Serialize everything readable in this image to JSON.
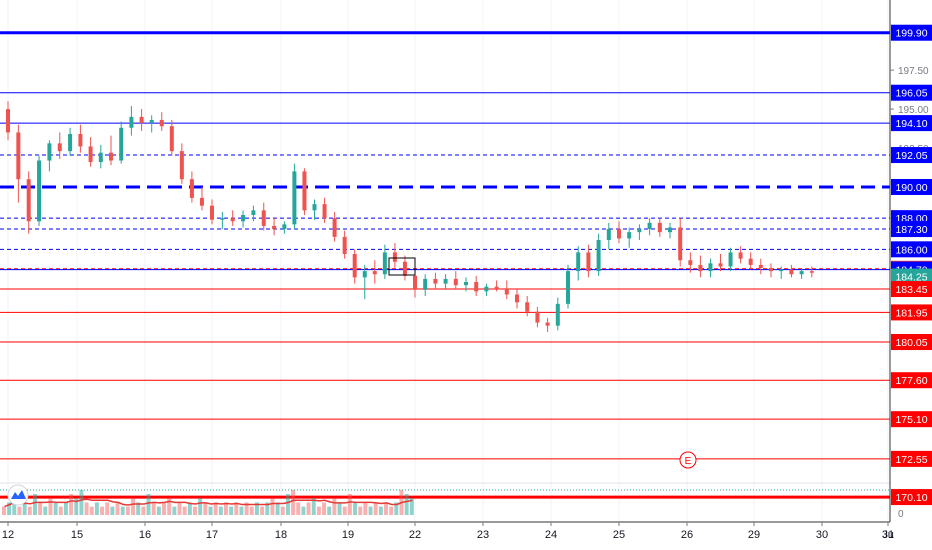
{
  "chart_data": {
    "type": "candlestick",
    "price_axis": {
      "range": [
        168.5,
        202.0
      ],
      "ticks": [
        "197.50",
        "195.00",
        "192.50"
      ]
    },
    "x_axis": {
      "tick_labels": [
        "12",
        "15",
        "16",
        "17",
        "18",
        "19",
        "22",
        "23",
        "24",
        "25",
        "26",
        "29",
        "30",
        "31",
        "Ju"
      ]
    },
    "level_labels": [
      {
        "value": 199.9,
        "label": "199.90",
        "color": "#0000ff"
      },
      {
        "value": 196.05,
        "label": "196.05",
        "color": "#0000ff"
      },
      {
        "value": 194.1,
        "label": "194.10",
        "color": "#0000ff"
      },
      {
        "value": 192.05,
        "label": "192.05",
        "color": "#0000ff"
      },
      {
        "value": 190.0,
        "label": "190.00",
        "color": "#0000ff"
      },
      {
        "value": 188.0,
        "label": "188.00",
        "color": "#0000ff"
      },
      {
        "value": 187.3,
        "label": "187.30",
        "color": "#0000ff"
      },
      {
        "value": 186.0,
        "label": "186.00",
        "color": "#0000ff"
      },
      {
        "value": 184.75,
        "label": "184.75",
        "color": "#f22d2d"
      },
      {
        "value": 184.7,
        "label": "184.70",
        "color": "#0000ff"
      },
      {
        "value": 184.25,
        "label": "184.25",
        "color": "#26a69a"
      },
      {
        "value": 183.45,
        "label": "183.45",
        "color": "#ff0000"
      },
      {
        "value": 181.95,
        "label": "181.95",
        "color": "#ff0000"
      },
      {
        "value": 180.05,
        "label": "180.05",
        "color": "#ff0000"
      },
      {
        "value": 177.6,
        "label": "177.60",
        "color": "#ff0000"
      },
      {
        "value": 175.1,
        "label": "175.10",
        "color": "#ff0000"
      },
      {
        "value": 172.55,
        "label": "172.55",
        "color": "#ff0000"
      },
      {
        "value": 170.1,
        "label": "170.10",
        "color": "#ff0000"
      }
    ],
    "horizontal_lines": [
      {
        "value": 199.9,
        "color": "#0000ff",
        "style": "solid",
        "weight": "thick"
      },
      {
        "value": 196.05,
        "color": "#0000ff",
        "style": "solid",
        "weight": "thin"
      },
      {
        "value": 194.1,
        "color": "#0000ff",
        "style": "solid",
        "weight": "thin"
      },
      {
        "value": 192.05,
        "color": "#0000ff",
        "style": "dashed",
        "weight": "thin"
      },
      {
        "value": 190.0,
        "color": "#0000ff",
        "style": "dashed",
        "weight": "thick"
      },
      {
        "value": 188.0,
        "color": "#0000ff",
        "style": "dashed",
        "weight": "thin"
      },
      {
        "value": 187.3,
        "color": "#0000ff",
        "style": "dashed",
        "weight": "thin"
      },
      {
        "value": 186.0,
        "color": "#0000ff",
        "style": "dashed",
        "weight": "thin"
      },
      {
        "value": 184.75,
        "color": "#ff0000",
        "style": "dashed",
        "weight": "thin"
      },
      {
        "value": 184.7,
        "color": "#0000ff",
        "style": "solid",
        "weight": "thin"
      },
      {
        "value": 183.45,
        "color": "#ff0000",
        "style": "solid",
        "weight": "thin"
      },
      {
        "value": 181.95,
        "color": "#ff0000",
        "style": "solid",
        "weight": "thin"
      },
      {
        "value": 180.05,
        "color": "#ff0000",
        "style": "solid",
        "weight": "thin"
      },
      {
        "value": 177.6,
        "color": "#ff0000",
        "style": "solid",
        "weight": "thin"
      },
      {
        "value": 175.1,
        "color": "#ff0000",
        "style": "solid",
        "weight": "thin"
      },
      {
        "value": 172.55,
        "color": "#ff0000",
        "style": "solid",
        "weight": "thin"
      },
      {
        "value": 170.1,
        "color": "#ff0000",
        "style": "solid",
        "weight": "thick"
      }
    ],
    "candles": [
      [
        0,
        195,
        195.5,
        193,
        193.5
      ],
      [
        0.15,
        193.5,
        194,
        189,
        190.5
      ],
      [
        0.3,
        190.5,
        191,
        187,
        187.8
      ],
      [
        0.45,
        187.8,
        192,
        187.5,
        191.7
      ],
      [
        0.6,
        191.7,
        193,
        191,
        192.8
      ],
      [
        0.75,
        192.8,
        193.5,
        191.8,
        192.3
      ],
      [
        0.9,
        192.3,
        193.8,
        192,
        193.4
      ],
      [
        1.05,
        193.4,
        194,
        192.2,
        192.6
      ],
      [
        1.2,
        192.6,
        193.2,
        191.3,
        191.6
      ],
      [
        1.35,
        191.6,
        192.7,
        191.2,
        192.2
      ],
      [
        1.5,
        192.2,
        193.3,
        191.4,
        191.7
      ],
      [
        1.65,
        191.7,
        194.2,
        191.5,
        193.8
      ],
      [
        1.8,
        193.8,
        195.2,
        193.3,
        194.5
      ],
      [
        1.95,
        194.5,
        195,
        193.6,
        194.1
      ],
      [
        2.1,
        194.1,
        194.6,
        193.5,
        194.3
      ],
      [
        2.25,
        194.3,
        194.8,
        193.6,
        193.9
      ],
      [
        2.4,
        193.9,
        194.3,
        192,
        192.3
      ],
      [
        2.55,
        192.3,
        192.8,
        190.2,
        190.5
      ],
      [
        2.7,
        190.5,
        191,
        189,
        189.3
      ],
      [
        2.85,
        189.3,
        190,
        188.5,
        188.8
      ],
      [
        3,
        188.8,
        189.2,
        187.6,
        187.9
      ],
      [
        3.15,
        187.9,
        188.4,
        187.3,
        188
      ],
      [
        3.3,
        188,
        188.5,
        187.5,
        187.8
      ],
      [
        3.45,
        187.8,
        188.5,
        187.4,
        188.2
      ],
      [
        3.6,
        188.2,
        188.8,
        187.8,
        188.5
      ],
      [
        3.75,
        188.5,
        189,
        187.2,
        187.5
      ],
      [
        3.9,
        187.5,
        188,
        186.9,
        187.3
      ],
      [
        4.05,
        187.3,
        187.8,
        187,
        187.6
      ],
      [
        4.2,
        187.6,
        191.5,
        187.3,
        191
      ],
      [
        4.35,
        191,
        191.2,
        188.2,
        188.5
      ],
      [
        4.5,
        188.5,
        189.2,
        187.9,
        188.9
      ],
      [
        4.65,
        188.9,
        189.3,
        187.7,
        188
      ],
      [
        4.8,
        188,
        188.4,
        186.5,
        186.8
      ],
      [
        4.95,
        186.8,
        187.2,
        185.4,
        185.7
      ],
      [
        5.1,
        185.7,
        186,
        183.8,
        184.2
      ],
      [
        5.25,
        184.2,
        185,
        182.8,
        184.6
      ],
      [
        5.4,
        184.6,
        185.3,
        183.8,
        184.4
      ],
      [
        5.55,
        184.4,
        186.3,
        184.1,
        185.8
      ],
      [
        5.7,
        185.8,
        186.4,
        184.8,
        185.2
      ],
      [
        5.85,
        185.2,
        185.6,
        184,
        184.3
      ],
      [
        6,
        184.3,
        185,
        182.9,
        183.4
      ],
      [
        6.15,
        183.4,
        184.4,
        183,
        184.1
      ],
      [
        6.3,
        184.1,
        184.5,
        183.5,
        183.8
      ],
      [
        6.45,
        183.8,
        184.4,
        183.4,
        184.1
      ],
      [
        6.6,
        184.1,
        184.6,
        183.5,
        183.7
      ],
      [
        6.75,
        183.7,
        184.2,
        183.3,
        183.9
      ],
      [
        6.9,
        183.9,
        184.3,
        183,
        183.3
      ],
      [
        7.05,
        183.3,
        183.8,
        183,
        183.6
      ],
      [
        7.2,
        183.6,
        184,
        183.3,
        183.5
      ],
      [
        7.35,
        183.5,
        184,
        182.8,
        183.1
      ],
      [
        7.5,
        183.1,
        183.5,
        182.2,
        182.6
      ],
      [
        7.65,
        182.6,
        183,
        181.7,
        182
      ],
      [
        7.8,
        182,
        182.3,
        181,
        181.3
      ],
      [
        7.95,
        181.3,
        181.6,
        180.7,
        181.1
      ],
      [
        8.1,
        181.1,
        182.9,
        180.8,
        182.5
      ],
      [
        8.25,
        182.5,
        185,
        182.2,
        184.6
      ],
      [
        8.4,
        184.6,
        186.2,
        184,
        185.8
      ],
      [
        8.55,
        185.8,
        186.3,
        184.2,
        184.6
      ],
      [
        8.7,
        184.6,
        187,
        184.3,
        186.6
      ],
      [
        8.85,
        186.6,
        187.7,
        186,
        187.3
      ],
      [
        9,
        187.3,
        187.8,
        186.4,
        186.7
      ],
      [
        9.15,
        186.7,
        187.4,
        186.1,
        187.1
      ],
      [
        9.3,
        187.1,
        187.6,
        186.6,
        187.3
      ],
      [
        9.45,
        187.3,
        188,
        186.9,
        187.7
      ],
      [
        9.6,
        187.7,
        188,
        186.8,
        187.1
      ],
      [
        9.75,
        187.1,
        187.7,
        186.7,
        187.4
      ],
      [
        9.9,
        187.4,
        188,
        184.9,
        185.3
      ],
      [
        10.05,
        185.3,
        185.8,
        184.5,
        185
      ],
      [
        10.2,
        185,
        185.6,
        184.2,
        184.6
      ],
      [
        10.35,
        184.6,
        185.4,
        184.2,
        185.1
      ],
      [
        10.5,
        185.1,
        185.7,
        184.6,
        184.9
      ],
      [
        10.65,
        184.9,
        186.1,
        184.6,
        185.8
      ],
      [
        10.8,
        185.8,
        186.2,
        185.1,
        185.4
      ],
      [
        10.95,
        185.4,
        185.8,
        184.7,
        185
      ],
      [
        11.1,
        185,
        185.4,
        184.4,
        184.8
      ],
      [
        11.25,
        184.8,
        185.1,
        184.2,
        184.6
      ],
      [
        11.4,
        184.6,
        184.9,
        184.1,
        184.7
      ],
      [
        11.55,
        184.7,
        185,
        184.2,
        184.4
      ],
      [
        11.7,
        184.4,
        184.8,
        184.1,
        184.6
      ],
      [
        11.85,
        184.6,
        184.9,
        184.2,
        184.5
      ]
    ],
    "volume": [
      [
        0,
        2,
        0
      ],
      [
        1,
        3,
        1
      ],
      [
        2,
        4,
        1
      ],
      [
        3,
        2,
        0
      ],
      [
        4,
        3,
        1
      ],
      [
        5,
        2,
        0
      ],
      [
        6,
        5,
        1
      ],
      [
        7,
        3,
        0
      ],
      [
        8,
        2,
        1
      ],
      [
        9,
        4,
        0
      ],
      [
        10,
        3,
        1
      ],
      [
        11,
        2,
        0
      ],
      [
        12,
        3,
        1
      ],
      [
        13,
        5,
        0
      ],
      [
        14,
        4,
        1
      ],
      [
        15,
        6,
        1
      ],
      [
        16,
        3,
        0
      ],
      [
        17,
        2,
        0
      ],
      [
        18,
        3,
        1
      ],
      [
        19,
        2,
        0
      ],
      [
        20,
        3,
        0
      ],
      [
        21,
        2,
        1
      ],
      [
        22,
        3,
        0
      ],
      [
        23,
        2,
        1
      ],
      [
        24,
        2,
        0
      ],
      [
        25,
        4,
        0
      ],
      [
        26,
        3,
        1
      ],
      [
        27,
        2,
        0
      ],
      [
        28,
        5,
        1
      ],
      [
        29,
        3,
        0
      ],
      [
        30,
        2,
        1
      ],
      [
        31,
        3,
        0
      ],
      [
        32,
        4,
        0
      ],
      [
        33,
        2,
        1
      ],
      [
        34,
        3,
        0
      ],
      [
        35,
        2,
        0
      ],
      [
        36,
        3,
        1
      ],
      [
        37,
        2,
        0
      ],
      [
        38,
        4,
        1
      ],
      [
        39,
        3,
        0
      ],
      [
        40,
        2,
        1
      ],
      [
        41,
        3,
        0
      ],
      [
        42,
        2,
        1
      ],
      [
        43,
        3,
        0
      ],
      [
        44,
        2,
        1
      ],
      [
        45,
        3,
        0
      ],
      [
        46,
        2,
        1
      ],
      [
        47,
        3,
        0
      ],
      [
        48,
        2,
        0
      ],
      [
        49,
        3,
        1
      ],
      [
        50,
        2,
        0
      ],
      [
        51,
        3,
        1
      ],
      [
        52,
        4,
        0
      ],
      [
        53,
        3,
        1
      ],
      [
        54,
        2,
        0
      ],
      [
        55,
        5,
        1
      ],
      [
        56,
        6,
        0
      ],
      [
        57,
        3,
        0
      ],
      [
        58,
        2,
        1
      ],
      [
        59,
        3,
        0
      ],
      [
        60,
        4,
        1
      ],
      [
        61,
        2,
        0
      ],
      [
        62,
        3,
        0
      ],
      [
        63,
        2,
        1
      ],
      [
        64,
        4,
        0
      ],
      [
        65,
        3,
        1
      ],
      [
        66,
        2,
        0
      ],
      [
        67,
        5,
        0
      ],
      [
        68,
        3,
        1
      ],
      [
        69,
        2,
        0
      ],
      [
        70,
        3,
        0
      ],
      [
        71,
        2,
        1
      ],
      [
        72,
        3,
        0
      ],
      [
        73,
        2,
        1
      ],
      [
        74,
        3,
        0
      ],
      [
        75,
        2,
        0
      ],
      [
        76,
        3,
        1
      ],
      [
        77,
        6,
        0
      ],
      [
        78,
        5,
        1
      ],
      [
        79,
        4,
        1
      ]
    ],
    "volume_axis_tick": "0",
    "event_marker": {
      "label": "E",
      "date_position": 25.0
    }
  }
}
